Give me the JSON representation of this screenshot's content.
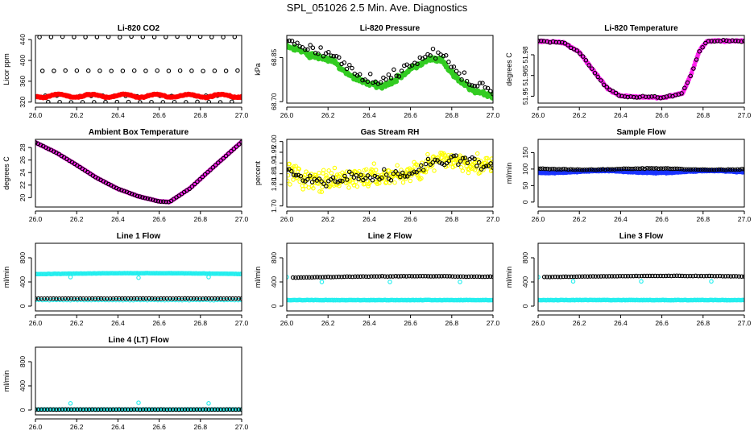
{
  "figure_title": "SPL_051026  2.5 Min. Ave. Diagnostics",
  "colors": {
    "black": "#000000",
    "red": "#ff0000",
    "green": "#33cc22",
    "magenta": "#ff22ee",
    "yellow": "#ffff00",
    "blue": "#1a33ff",
    "cyan": "#22eeee"
  },
  "chart_data": [
    {
      "id": "co2",
      "type": "scatter",
      "title": "Li-820 CO2",
      "ylabel": "Licor ppm",
      "xlim": [
        26.0,
        27.0
      ],
      "ylim": [
        318,
        448
      ],
      "x_ticks": [
        "26.0",
        "26.2",
        "26.4",
        "26.6",
        "26.8",
        "27.0"
      ],
      "y_ticks": [
        {
          "v": 320,
          "label": "320"
        },
        {
          "v": 360,
          "label": "360"
        },
        {
          "v": 400,
          "label": "400"
        },
        {
          "v": 440,
          "label": "440"
        }
      ],
      "series": [
        {
          "name": "black",
          "color": "black",
          "kind": "open",
          "gen": "co2b"
        },
        {
          "name": "red",
          "color": "red",
          "kind": "filled",
          "gen": "co2r"
        }
      ]
    },
    {
      "id": "pressure",
      "type": "scatter",
      "title": "Li-820 Pressure",
      "ylabel": "kPa",
      "xlim": [
        26.0,
        27.0
      ],
      "ylim": [
        68.695,
        68.925
      ],
      "x_ticks": [
        "26.0",
        "26.2",
        "26.4",
        "26.6",
        "26.8",
        "27.0"
      ],
      "y_ticks": [
        {
          "v": 68.7,
          "label": "68.70"
        },
        {
          "v": 68.85,
          "label": "68.85"
        }
      ],
      "series": [
        {
          "name": "green",
          "color": "green",
          "kind": "filled",
          "gen": "presg"
        },
        {
          "name": "black",
          "color": "black",
          "kind": "open",
          "gen": "presb"
        }
      ]
    },
    {
      "id": "licor_temp",
      "type": "scatter",
      "title": "Li-820 Temperature",
      "ylabel": "degrees C",
      "xlim": [
        26.0,
        27.0
      ],
      "ylim": [
        51.945,
        51.994
      ],
      "x_ticks": [
        "26.0",
        "26.2",
        "26.4",
        "26.6",
        "26.8",
        "27.0"
      ],
      "y_ticks": [
        {
          "v": 51.95,
          "label": "51.95"
        },
        {
          "v": 51.965,
          "label": "51.965"
        },
        {
          "v": 51.98,
          "label": "51.98"
        }
      ],
      "series": [
        {
          "name": "magenta",
          "color": "magenta",
          "kind": "filled",
          "gen": "ltm"
        },
        {
          "name": "black",
          "color": "black",
          "kind": "open",
          "gen": "ltb"
        }
      ]
    },
    {
      "id": "box_temp",
      "type": "scatter",
      "title": "Ambient Box Temperature",
      "ylabel": "degrees C",
      "xlim": [
        26.0,
        27.0
      ],
      "ylim": [
        18.5,
        29.3
      ],
      "x_ticks": [
        "26.0",
        "26.2",
        "26.4",
        "26.6",
        "26.8",
        "27.0"
      ],
      "y_ticks": [
        {
          "v": 20,
          "label": "20"
        },
        {
          "v": 22,
          "label": "22"
        },
        {
          "v": 24,
          "label": "24"
        },
        {
          "v": 26,
          "label": "26"
        },
        {
          "v": 28,
          "label": "28"
        }
      ],
      "series": [
        {
          "name": "magenta",
          "color": "magenta",
          "kind": "filled",
          "gen": "btm"
        },
        {
          "name": "black",
          "color": "black",
          "kind": "open",
          "gen": "btb"
        }
      ]
    },
    {
      "id": "rh",
      "type": "scatter",
      "title": "Gas Stream RH",
      "ylabel": "percent",
      "xlim": [
        26.0,
        27.0
      ],
      "ylim": [
        1.695,
        2.01
      ],
      "x_ticks": [
        "26.0",
        "26.2",
        "26.4",
        "26.6",
        "26.8",
        "27.0"
      ],
      "y_ticks": [
        {
          "v": 1.7,
          "label": "1.70"
        },
        {
          "v": 1.8,
          "label": "1.80"
        },
        {
          "v": 1.85,
          "label": "1.85"
        },
        {
          "v": 1.9,
          "label": "1.90"
        },
        {
          "v": 1.95,
          "label": "1.95"
        },
        {
          "v": 2.0,
          "label": "2.00"
        }
      ],
      "series": [
        {
          "name": "yellow",
          "color": "yellow",
          "kind": "open",
          "gen": "rhy"
        },
        {
          "name": "black",
          "color": "black",
          "kind": "open",
          "gen": "rhb"
        }
      ]
    },
    {
      "id": "sample_flow",
      "type": "scatter",
      "title": "Sample Flow",
      "ylabel": "ml/min",
      "xlim": [
        26.0,
        27.0
      ],
      "ylim": [
        -15,
        190
      ],
      "x_ticks": [
        "26.0",
        "26.2",
        "26.4",
        "26.6",
        "26.8",
        "27.0"
      ],
      "y_ticks": [
        {
          "v": 0,
          "label": "0"
        },
        {
          "v": 50,
          "label": "50"
        },
        {
          "v": 100,
          "label": "100"
        },
        {
          "v": 150,
          "label": "150"
        }
      ],
      "series": [
        {
          "name": "blue",
          "color": "blue",
          "kind": "filled",
          "gen": "sfbl"
        },
        {
          "name": "black",
          "color": "black",
          "kind": "open",
          "gen": "sfb"
        }
      ]
    },
    {
      "id": "line1",
      "type": "scatter",
      "title": "Line 1 Flow",
      "ylabel": "ml/min",
      "xlim": [
        26.0,
        27.0
      ],
      "ylim": [
        -80,
        1040
      ],
      "x_ticks": [
        "26.0",
        "26.2",
        "26.4",
        "26.6",
        "26.8",
        "27.0"
      ],
      "y_ticks": [
        {
          "v": 0,
          "label": "0"
        },
        {
          "v": 400,
          "label": "400"
        },
        {
          "v": 800,
          "label": "800"
        }
      ],
      "series": [
        {
          "name": "cyan",
          "color": "cyan",
          "kind": "open",
          "gen": "l1c"
        },
        {
          "name": "black",
          "color": "black",
          "kind": "open",
          "gen": "l1b"
        }
      ]
    },
    {
      "id": "line2",
      "type": "scatter",
      "title": "Line 2 Flow",
      "ylabel": "ml/min",
      "xlim": [
        26.0,
        27.0
      ],
      "ylim": [
        -80,
        1040
      ],
      "x_ticks": [
        "26.0",
        "26.2",
        "26.4",
        "26.6",
        "26.8",
        "27.0"
      ],
      "y_ticks": [
        {
          "v": 0,
          "label": "0"
        },
        {
          "v": 400,
          "label": "400"
        },
        {
          "v": 800,
          "label": "800"
        }
      ],
      "series": [
        {
          "name": "cyan",
          "color": "cyan",
          "kind": "open",
          "gen": "l2c"
        },
        {
          "name": "black",
          "color": "black",
          "kind": "open",
          "gen": "l2b"
        }
      ]
    },
    {
      "id": "line3",
      "type": "scatter",
      "title": "Line 3 Flow",
      "ylabel": "ml/min",
      "xlim": [
        26.0,
        27.0
      ],
      "ylim": [
        -80,
        1040
      ],
      "x_ticks": [
        "26.0",
        "26.2",
        "26.4",
        "26.6",
        "26.8",
        "27.0"
      ],
      "y_ticks": [
        {
          "v": 0,
          "label": "0"
        },
        {
          "v": 400,
          "label": "400"
        },
        {
          "v": 800,
          "label": "800"
        }
      ],
      "series": [
        {
          "name": "cyan",
          "color": "cyan",
          "kind": "open",
          "gen": "l3c"
        },
        {
          "name": "black",
          "color": "black",
          "kind": "open",
          "gen": "l3b"
        }
      ]
    },
    {
      "id": "line4",
      "type": "scatter",
      "title": "Line 4 (LT) Flow",
      "ylabel": "ml/min",
      "xlim": [
        26.0,
        27.0
      ],
      "ylim": [
        -80,
        1040
      ],
      "x_ticks": [
        "26.0",
        "26.2",
        "26.4",
        "26.6",
        "26.8",
        "27.0"
      ],
      "y_ticks": [
        {
          "v": 0,
          "label": "0"
        },
        {
          "v": 400,
          "label": "400"
        },
        {
          "v": 800,
          "label": "800"
        }
      ],
      "series": [
        {
          "name": "cyan",
          "color": "cyan",
          "kind": "open",
          "gen": "l4c"
        },
        {
          "name": "black",
          "color": "black",
          "kind": "open",
          "gen": "l4b"
        }
      ]
    }
  ]
}
